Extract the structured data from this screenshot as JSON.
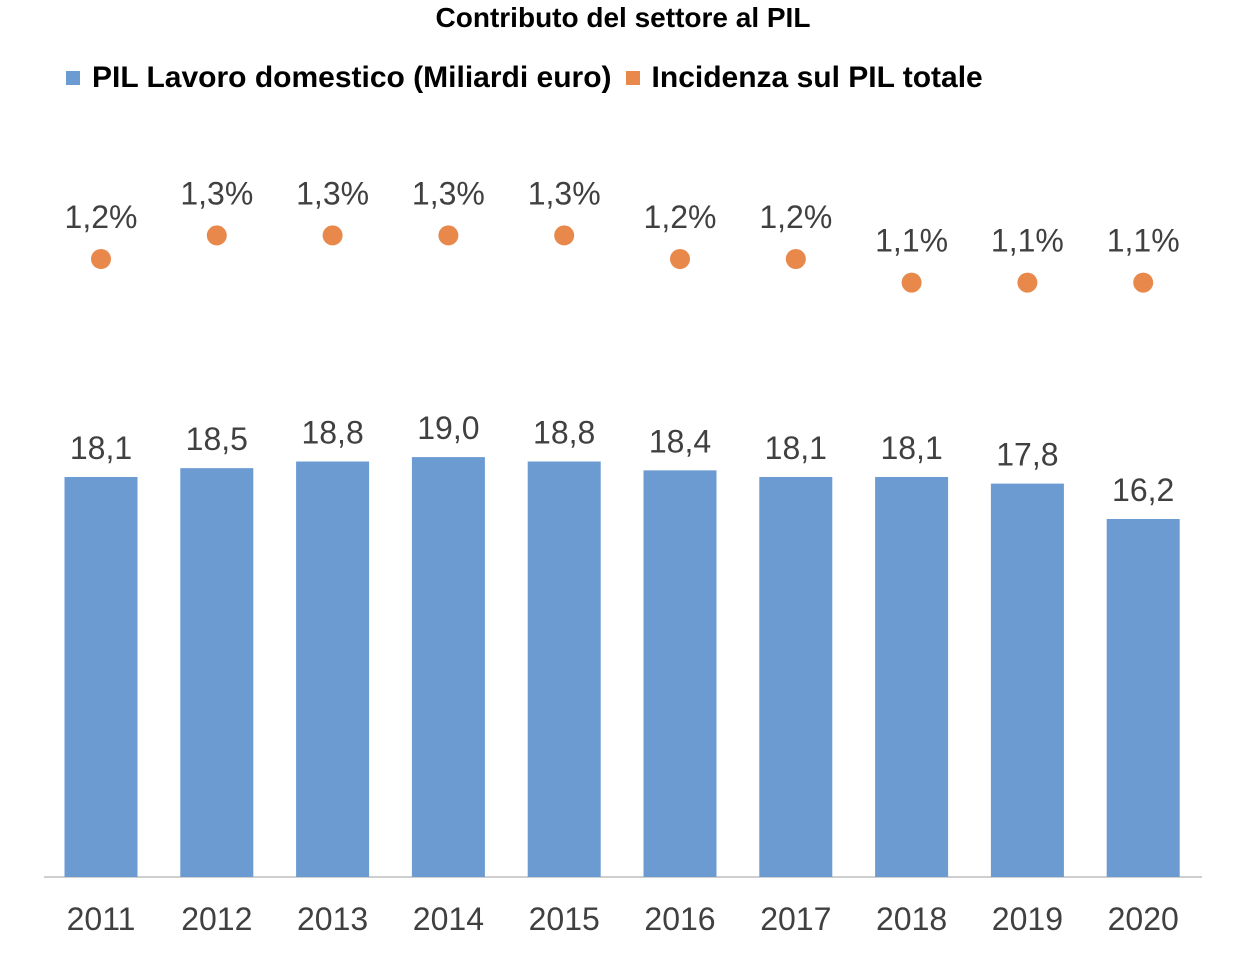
{
  "chart_data": {
    "type": "bar",
    "title": "Contributo del settore al PIL",
    "categories": [
      "2011",
      "2012",
      "2013",
      "2014",
      "2015",
      "2016",
      "2017",
      "2018",
      "2019",
      "2020"
    ],
    "series": [
      {
        "name": "PIL Lavoro domestico (Miliardi euro)",
        "type": "bar",
        "color": "#6b9bd1",
        "values": [
          18.1,
          18.5,
          18.8,
          19.0,
          18.8,
          18.4,
          18.1,
          18.1,
          17.8,
          16.2
        ],
        "labels": [
          "18,1",
          "18,5",
          "18,8",
          "19,0",
          "18,8",
          "18,4",
          "18,1",
          "18,1",
          "17,8",
          "16,2"
        ]
      },
      {
        "name": "Incidenza sul PIL totale",
        "type": "scatter",
        "color": "#e8894b",
        "values": [
          1.2,
          1.3,
          1.3,
          1.3,
          1.3,
          1.2,
          1.2,
          1.1,
          1.1,
          1.1
        ],
        "labels": [
          "1,2%",
          "1,3%",
          "1,3%",
          "1,3%",
          "1,3%",
          "1,2%",
          "1,2%",
          "1,1%",
          "1,1%",
          "1,1%"
        ]
      }
    ],
    "xlabel": "",
    "ylabel": "",
    "legend": "top",
    "grid": false
  }
}
